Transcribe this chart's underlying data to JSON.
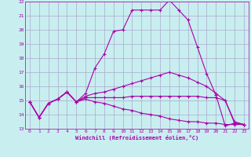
{
  "xlabel": "Windchill (Refroidissement éolien,°C)",
  "bg_color": "#c8eef0",
  "line_color": "#aa00aa",
  "grid_color": "#aaaacc",
  "xlim": [
    -0.5,
    23.5
  ],
  "ylim": [
    13,
    22
  ],
  "xticks": [
    0,
    1,
    2,
    3,
    4,
    5,
    6,
    7,
    8,
    9,
    10,
    11,
    12,
    13,
    14,
    15,
    16,
    17,
    18,
    19,
    20,
    21,
    22,
    23
  ],
  "yticks": [
    13,
    14,
    15,
    16,
    17,
    18,
    19,
    20,
    21,
    22
  ],
  "lines": [
    {
      "x": [
        0,
        1,
        2,
        3,
        4,
        5,
        6,
        7,
        8,
        9,
        10,
        11,
        12,
        13,
        14,
        15,
        16,
        17,
        18,
        19,
        20,
        21,
        22,
        23
      ],
      "y": [
        14.9,
        13.8,
        14.8,
        15.1,
        15.6,
        14.9,
        15.5,
        17.3,
        18.3,
        19.9,
        20.0,
        21.4,
        21.4,
        21.4,
        21.4,
        22.1,
        21.4,
        20.7,
        18.8,
        16.9,
        15.4,
        13.2,
        13.4,
        13.3
      ]
    },
    {
      "x": [
        0,
        1,
        2,
        3,
        4,
        5,
        6,
        7,
        8,
        9,
        10,
        11,
        12,
        13,
        14,
        15,
        16,
        17,
        18,
        19,
        20,
        21,
        22,
        23
      ],
      "y": [
        14.9,
        13.8,
        14.8,
        15.1,
        15.6,
        14.9,
        15.3,
        15.5,
        15.6,
        15.8,
        16.0,
        16.2,
        16.4,
        16.6,
        16.8,
        17.0,
        16.8,
        16.6,
        16.3,
        16.0,
        15.5,
        15.0,
        13.4,
        13.3
      ]
    },
    {
      "x": [
        0,
        1,
        2,
        3,
        4,
        5,
        6,
        7,
        8,
        9,
        10,
        11,
        12,
        13,
        14,
        15,
        16,
        17,
        18,
        19,
        20,
        21,
        22,
        23
      ],
      "y": [
        14.9,
        13.8,
        14.8,
        15.1,
        15.6,
        14.9,
        15.2,
        15.2,
        15.2,
        15.2,
        15.2,
        15.3,
        15.3,
        15.3,
        15.3,
        15.3,
        15.3,
        15.3,
        15.3,
        15.2,
        15.2,
        15.0,
        13.5,
        13.3
      ]
    },
    {
      "x": [
        0,
        1,
        2,
        3,
        4,
        5,
        6,
        7,
        8,
        9,
        10,
        11,
        12,
        13,
        14,
        15,
        16,
        17,
        18,
        19,
        20,
        21,
        22,
        23
      ],
      "y": [
        14.9,
        13.8,
        14.8,
        15.1,
        15.6,
        14.9,
        15.1,
        14.9,
        14.8,
        14.6,
        14.4,
        14.3,
        14.1,
        14.0,
        13.9,
        13.7,
        13.6,
        13.5,
        13.5,
        13.4,
        13.4,
        13.3,
        13.3,
        13.3
      ]
    }
  ]
}
